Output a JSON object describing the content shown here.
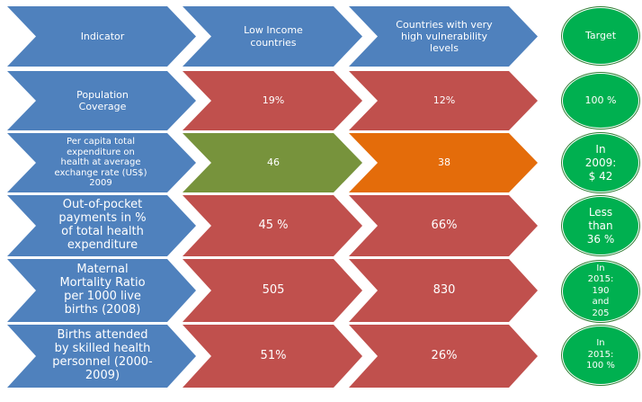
{
  "header": {
    "indicator": "Indicator",
    "low_income": "Low Income\ncountries",
    "vulnerable": "Countries with very\nhigh vulnerability\nlevels",
    "target": "Target"
  },
  "rows": [
    {
      "indicator": "Population\nCoverage",
      "low_income": "19%",
      "vulnerable": "12%",
      "target": "100 %"
    },
    {
      "indicator": "Per capita total\nexpenditure on\nhealth at average\nexchange rate (US$)\n2009",
      "low_income": "46",
      "vulnerable": "38",
      "target": "In\n2009:\n$ 42"
    },
    {
      "indicator": "Out-of-pocket\npayments in %\nof total health\nexpenditure",
      "low_income": "45 %",
      "vulnerable": "66%",
      "target": "Less\nthan\n36 %"
    },
    {
      "indicator": "Maternal\nMortality Ratio\nper 1000 live\nbirths (2008)",
      "low_income": "505",
      "vulnerable": "830",
      "target": "In\n2015:\n190\nand\n205"
    },
    {
      "indicator": "Births attended\nby skilled health\npersonnel (2000-\n2009)",
      "low_income": "51%",
      "vulnerable": "26%",
      "target": "In\n2015:\n100 %"
    }
  ],
  "colors": {
    "blue": "#4f81bd",
    "red": "#c0504d",
    "green": "#77933c",
    "orange": "#e46c0a",
    "target_green": "#00b050"
  }
}
